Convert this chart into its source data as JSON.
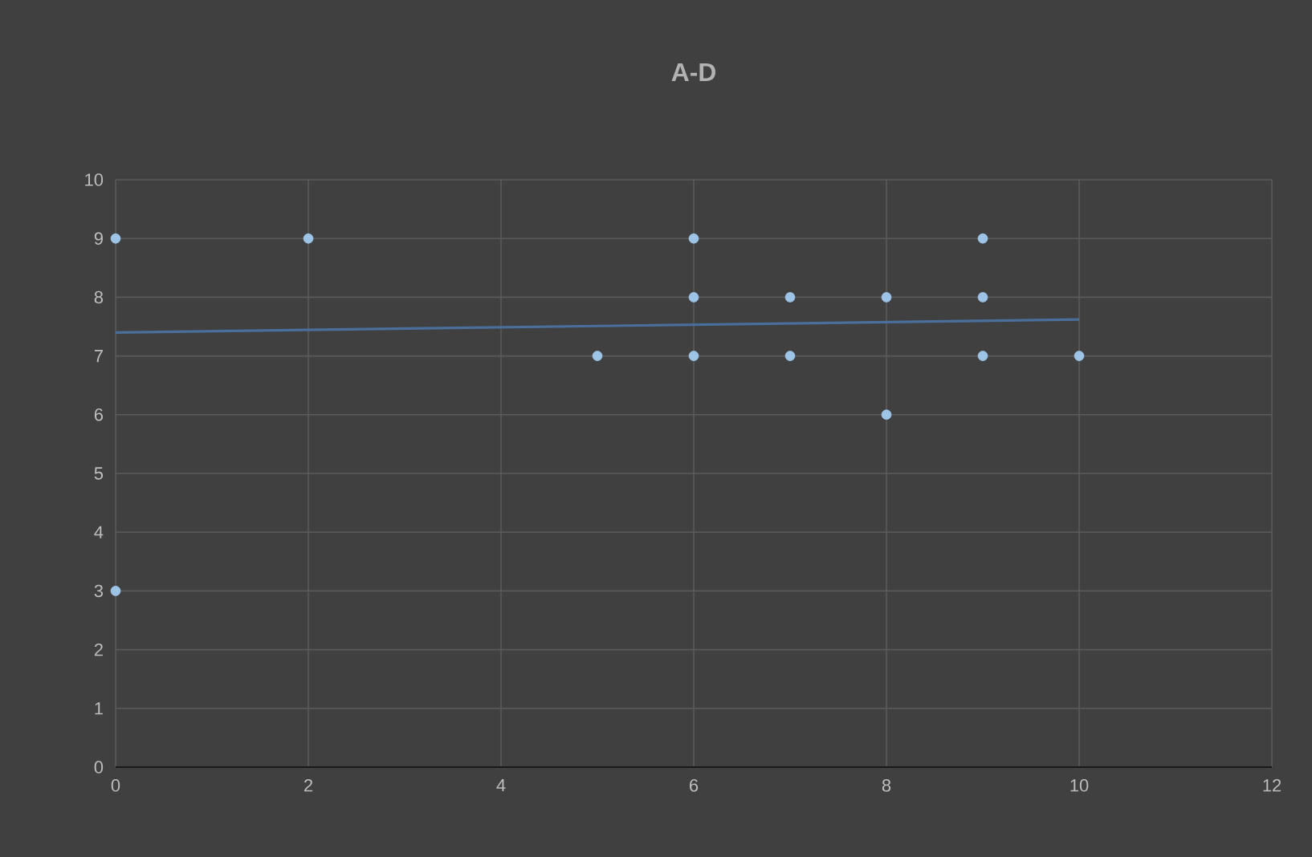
{
  "chart_data": {
    "type": "scatter",
    "title": "A-D",
    "xlim": [
      0,
      12
    ],
    "ylim": [
      0,
      10
    ],
    "xticks": [
      0,
      2,
      4,
      6,
      8,
      10,
      12
    ],
    "yticks": [
      0,
      1,
      2,
      3,
      4,
      5,
      6,
      7,
      8,
      9,
      10
    ],
    "grid": true,
    "marker": "circle",
    "series": [
      {
        "color": "#9dc3e6",
        "x": [
          0,
          0,
          2,
          5,
          6,
          6,
          6,
          7,
          7,
          8,
          8,
          9,
          9,
          9,
          10
        ],
        "values": [
          9,
          3,
          9,
          7,
          9,
          8,
          7,
          8,
          7,
          8,
          6,
          9,
          8,
          7,
          7
        ]
      },
      {
        "type": "line",
        "color": "#4a6f9c",
        "marker": "none",
        "x": [
          0,
          10
        ],
        "values": [
          7.4,
          7.62
        ]
      }
    ]
  }
}
